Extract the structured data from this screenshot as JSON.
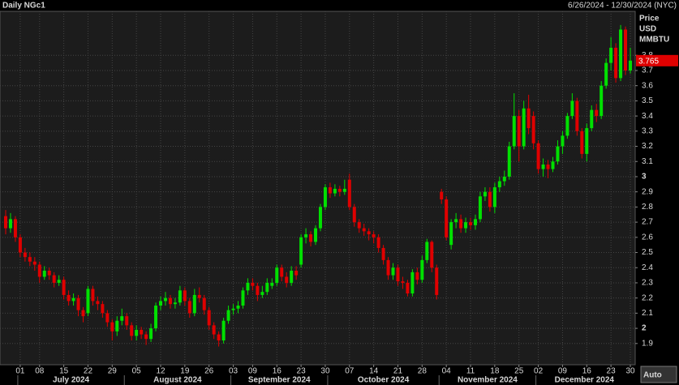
{
  "chart_data": {
    "type": "candlestick",
    "title": "Daily NGc1",
    "range_text": "6/26/2024 - 12/30/2024 (NYC)",
    "y_label": [
      "Price",
      "USD",
      "MMBTU"
    ],
    "auto_button": "Auto",
    "up_color": "#00e000",
    "down_color": "#e00000",
    "grid": true,
    "ylim": [
      1.76,
      4.09
    ],
    "yticks": [
      1.9,
      2,
      2.1,
      2.2,
      2.3,
      2.4,
      2.5,
      2.6,
      2.7,
      2.8,
      2.9,
      3,
      3.1,
      3.2,
      3.3,
      3.4,
      3.5,
      3.6,
      3.7,
      3.8
    ],
    "x": [
      "2024-06-26",
      "2024-06-27",
      "2024-06-28",
      "2024-07-01",
      "2024-07-02",
      "2024-07-03",
      "2024-07-05",
      "2024-07-08",
      "2024-07-09",
      "2024-07-10",
      "2024-07-11",
      "2024-07-12",
      "2024-07-15",
      "2024-07-16",
      "2024-07-17",
      "2024-07-18",
      "2024-07-19",
      "2024-07-22",
      "2024-07-23",
      "2024-07-24",
      "2024-07-25",
      "2024-07-26",
      "2024-07-29",
      "2024-07-30",
      "2024-07-31",
      "2024-08-01",
      "2024-08-02",
      "2024-08-05",
      "2024-08-06",
      "2024-08-07",
      "2024-08-08",
      "2024-08-09",
      "2024-08-12",
      "2024-08-13",
      "2024-08-14",
      "2024-08-15",
      "2024-08-16",
      "2024-08-19",
      "2024-08-20",
      "2024-08-21",
      "2024-08-22",
      "2024-08-23",
      "2024-08-26",
      "2024-08-27",
      "2024-08-28",
      "2024-08-29",
      "2024-08-30",
      "2024-09-03",
      "2024-09-04",
      "2024-09-05",
      "2024-09-06",
      "2024-09-09",
      "2024-09-10",
      "2024-09-11",
      "2024-09-12",
      "2024-09-13",
      "2024-09-16",
      "2024-09-17",
      "2024-09-18",
      "2024-09-19",
      "2024-09-20",
      "2024-09-23",
      "2024-09-24",
      "2024-09-25",
      "2024-09-26",
      "2024-09-27",
      "2024-09-30",
      "2024-10-01",
      "2024-10-02",
      "2024-10-03",
      "2024-10-04",
      "2024-10-07",
      "2024-10-08",
      "2024-10-09",
      "2024-10-10",
      "2024-10-11",
      "2024-10-14",
      "2024-10-15",
      "2024-10-16",
      "2024-10-17",
      "2024-10-18",
      "2024-10-21",
      "2024-10-22",
      "2024-10-23",
      "2024-10-24",
      "2024-10-25",
      "2024-10-28",
      "2024-10-29",
      "2024-10-30",
      "2024-10-31",
      "2024-11-01",
      "2024-11-04",
      "2024-11-05",
      "2024-11-06",
      "2024-11-07",
      "2024-11-08",
      "2024-11-11",
      "2024-11-12",
      "2024-11-13",
      "2024-11-14",
      "2024-11-15",
      "2024-11-18",
      "2024-11-19",
      "2024-11-20",
      "2024-11-21",
      "2024-11-22",
      "2024-11-25",
      "2024-11-26",
      "2024-11-27",
      "2024-11-29",
      "2024-12-02",
      "2024-12-03",
      "2024-12-04",
      "2024-12-05",
      "2024-12-06",
      "2024-12-09",
      "2024-12-10",
      "2024-12-11",
      "2024-12-12",
      "2024-12-13",
      "2024-12-16",
      "2024-12-17",
      "2024-12-18",
      "2024-12-19",
      "2024-12-20",
      "2024-12-23",
      "2024-12-24",
      "2024-12-26",
      "2024-12-27",
      "2024-12-30"
    ],
    "open": [
      2.74,
      2.66,
      2.72,
      2.6,
      2.5,
      2.47,
      2.44,
      2.42,
      2.34,
      2.38,
      2.35,
      2.3,
      2.32,
      2.22,
      2.18,
      2.2,
      2.12,
      2.1,
      2.26,
      2.18,
      2.16,
      2.1,
      2.04,
      1.98,
      2.05,
      2.08,
      2.02,
      1.95,
      1.99,
      1.96,
      1.93,
      2.0,
      2.15,
      2.18,
      2.2,
      2.16,
      2.17,
      2.25,
      2.18,
      2.1,
      2.22,
      2.2,
      2.12,
      2.02,
      1.96,
      1.92,
      2.05,
      2.12,
      2.13,
      2.15,
      2.25,
      2.3,
      2.28,
      2.22,
      2.24,
      2.28,
      2.3,
      2.4,
      2.34,
      2.3,
      2.38,
      2.42,
      2.6,
      2.62,
      2.57,
      2.66,
      2.8,
      2.93,
      2.89,
      2.92,
      2.9,
      2.98,
      2.8,
      2.7,
      2.66,
      2.64,
      2.62,
      2.6,
      2.53,
      2.45,
      2.35,
      2.4,
      2.31,
      2.3,
      2.23,
      2.37,
      2.32,
      2.45,
      2.57,
      2.4,
      2.9,
      2.85,
      2.55,
      2.7,
      2.72,
      2.66,
      2.7,
      2.68,
      2.72,
      2.87,
      2.9,
      2.8,
      2.93,
      2.97,
      3.0,
      3.2,
      3.4,
      3.2,
      3.45,
      3.4,
      3.22,
      3.05,
      3.08,
      3.05,
      3.1,
      3.2,
      3.27,
      3.4,
      3.5,
      3.3,
      3.15,
      3.32,
      3.44,
      3.4,
      3.6,
      3.75,
      3.85,
      3.65,
      3.97,
      3.7
    ],
    "high": [
      2.78,
      2.76,
      2.74,
      2.62,
      2.53,
      2.5,
      2.47,
      2.44,
      2.41,
      2.4,
      2.37,
      2.35,
      2.34,
      2.25,
      2.23,
      2.22,
      2.14,
      2.28,
      2.28,
      2.21,
      2.18,
      2.12,
      2.06,
      2.08,
      2.13,
      2.1,
      2.04,
      2.02,
      2.01,
      1.98,
      2.03,
      2.17,
      2.21,
      2.24,
      2.22,
      2.2,
      2.28,
      2.27,
      2.2,
      2.26,
      2.27,
      2.22,
      2.14,
      2.04,
      1.98,
      2.07,
      2.15,
      2.16,
      2.18,
      2.27,
      2.33,
      2.33,
      2.3,
      2.28,
      2.33,
      2.33,
      2.42,
      2.42,
      2.37,
      2.41,
      2.41,
      2.62,
      2.66,
      2.64,
      2.68,
      2.82,
      2.95,
      2.96,
      2.95,
      2.94,
      2.98,
      3.02,
      2.82,
      2.72,
      2.69,
      2.66,
      2.64,
      2.62,
      2.55,
      2.47,
      2.43,
      2.42,
      2.34,
      2.32,
      2.39,
      2.4,
      2.48,
      2.59,
      2.58,
      2.42,
      2.92,
      2.87,
      2.72,
      2.76,
      2.75,
      2.73,
      2.73,
      2.75,
      2.9,
      2.93,
      2.93,
      2.96,
      3.0,
      3.04,
      3.23,
      3.55,
      3.44,
      3.5,
      3.54,
      3.43,
      3.24,
      3.12,
      3.11,
      3.13,
      3.24,
      3.3,
      3.42,
      3.55,
      3.52,
      3.32,
      3.35,
      3.47,
      3.48,
      3.63,
      3.78,
      3.92,
      3.88,
      4.0,
      3.99,
      3.85
    ],
    "low": [
      2.62,
      2.63,
      2.57,
      2.47,
      2.44,
      2.41,
      2.38,
      2.3,
      2.32,
      2.32,
      2.27,
      2.28,
      2.19,
      2.15,
      2.15,
      2.08,
      2.04,
      2.08,
      2.15,
      2.12,
      2.07,
      2.01,
      1.92,
      1.95,
      2.02,
      1.99,
      1.92,
      1.92,
      1.93,
      1.89,
      1.91,
      1.98,
      2.12,
      2.15,
      2.13,
      2.13,
      2.15,
      2.15,
      2.07,
      2.08,
      2.17,
      2.09,
      1.99,
      1.93,
      1.88,
      1.9,
      2.03,
      2.09,
      2.1,
      2.13,
      2.22,
      2.25,
      2.18,
      2.2,
      2.22,
      2.26,
      2.28,
      2.31,
      2.27,
      2.28,
      2.32,
      2.4,
      2.56,
      2.54,
      2.55,
      2.64,
      2.78,
      2.86,
      2.87,
      2.87,
      2.88,
      2.78,
      2.67,
      2.63,
      2.61,
      2.58,
      2.56,
      2.5,
      2.42,
      2.32,
      2.32,
      2.28,
      2.26,
      2.21,
      2.21,
      2.29,
      2.3,
      2.43,
      2.37,
      2.19,
      2.82,
      2.58,
      2.52,
      2.66,
      2.63,
      2.63,
      2.65,
      2.65,
      2.7,
      2.84,
      2.77,
      2.76,
      2.9,
      2.94,
      2.98,
      3.18,
      3.1,
      3.18,
      3.28,
      3.18,
      3.02,
      3.0,
      2.99,
      3.03,
      3.08,
      3.15,
      3.25,
      3.38,
      3.27,
      3.12,
      3.1,
      3.3,
      3.36,
      3.38,
      3.58,
      3.7,
      3.62,
      3.63,
      3.67,
      3.68
    ],
    "close": [
      2.66,
      2.72,
      2.6,
      2.5,
      2.47,
      2.44,
      2.42,
      2.34,
      2.38,
      2.35,
      2.3,
      2.32,
      2.22,
      2.18,
      2.2,
      2.12,
      2.08,
      2.26,
      2.18,
      2.16,
      2.1,
      2.04,
      1.98,
      2.05,
      2.08,
      2.02,
      1.95,
      1.99,
      1.96,
      1.93,
      2.0,
      2.15,
      2.18,
      2.2,
      2.16,
      2.17,
      2.25,
      2.18,
      2.1,
      2.22,
      2.2,
      2.12,
      2.02,
      1.96,
      1.92,
      2.05,
      2.12,
      2.13,
      2.15,
      2.25,
      2.3,
      2.28,
      2.22,
      2.24,
      2.3,
      2.3,
      2.4,
      2.34,
      2.3,
      2.38,
      2.35,
      2.6,
      2.62,
      2.57,
      2.66,
      2.8,
      2.93,
      2.89,
      2.92,
      2.9,
      2.92,
      2.8,
      2.7,
      2.66,
      2.64,
      2.62,
      2.6,
      2.53,
      2.45,
      2.35,
      2.4,
      2.31,
      2.3,
      2.23,
      2.37,
      2.32,
      2.45,
      2.57,
      2.4,
      2.22,
      2.85,
      2.6,
      2.7,
      2.72,
      2.66,
      2.7,
      2.68,
      2.72,
      2.87,
      2.9,
      2.8,
      2.93,
      2.97,
      3.0,
      3.2,
      3.4,
      3.2,
      3.45,
      3.32,
      3.22,
      3.05,
      3.08,
      3.05,
      3.1,
      3.2,
      3.27,
      3.4,
      3.5,
      3.3,
      3.15,
      3.32,
      3.44,
      3.4,
      3.6,
      3.75,
      3.85,
      3.65,
      3.97,
      3.7,
      3.765
    ],
    "xticks": [
      {
        "value": "2024-07-01",
        "label": "01"
      },
      {
        "value": "2024-07-08",
        "label": "08"
      },
      {
        "value": "2024-07-15",
        "label": "15"
      },
      {
        "value": "2024-07-22",
        "label": "22"
      },
      {
        "value": "2024-07-29",
        "label": "29"
      },
      {
        "value": "2024-08-05",
        "label": "05"
      },
      {
        "value": "2024-08-12",
        "label": "12"
      },
      {
        "value": "2024-08-19",
        "label": "19"
      },
      {
        "value": "2024-08-26",
        "label": "26"
      },
      {
        "value": "2024-09-03",
        "label": "03"
      },
      {
        "value": "2024-09-09",
        "label": "09"
      },
      {
        "value": "2024-09-16",
        "label": "16"
      },
      {
        "value": "2024-09-23",
        "label": "23"
      },
      {
        "value": "2024-09-30",
        "label": "30"
      },
      {
        "value": "2024-10-07",
        "label": "07"
      },
      {
        "value": "2024-10-14",
        "label": "14"
      },
      {
        "value": "2024-10-21",
        "label": "21"
      },
      {
        "value": "2024-10-28",
        "label": "28"
      },
      {
        "value": "2024-11-04",
        "label": "04"
      },
      {
        "value": "2024-11-11",
        "label": "11"
      },
      {
        "value": "2024-11-18",
        "label": "18"
      },
      {
        "value": "2024-11-25",
        "label": "25"
      },
      {
        "value": "2024-12-02",
        "label": "02"
      },
      {
        "value": "2024-12-09",
        "label": "09"
      },
      {
        "value": "2024-12-16",
        "label": "16"
      },
      {
        "value": "2024-12-23",
        "label": "23"
      },
      {
        "value": "2024-12-30",
        "label": "30"
      }
    ],
    "months": [
      {
        "value": "2024-07",
        "label": "July 2024"
      },
      {
        "value": "2024-08",
        "label": "August 2024"
      },
      {
        "value": "2024-09",
        "label": "September 2024"
      },
      {
        "value": "2024-10",
        "label": "October 2024"
      },
      {
        "value": "2024-11",
        "label": "November 2024"
      },
      {
        "value": "2024-12",
        "label": "December 2024"
      }
    ]
  }
}
